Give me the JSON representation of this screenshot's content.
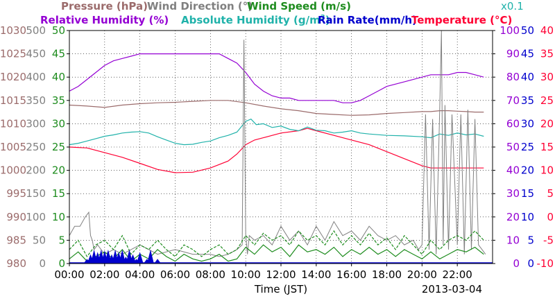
{
  "chart_data": {
    "type": "line",
    "date_label": "2013-03-04",
    "xlabel": "Time (JST)",
    "xlim": [
      0,
      24
    ],
    "x_ticks": [
      "00:00",
      "02:00",
      "04:00",
      "06:00",
      "08:00",
      "10:00",
      "12:00",
      "14:00",
      "16:00",
      "18:00",
      "20:00",
      "22:00"
    ],
    "multiplier_note": "x0.1",
    "colors": {
      "pressure": "#9b6b6b",
      "wind_direction": "#808080",
      "wind_speed": "#1e8c1e",
      "humidity": "#9400d3",
      "abs_humidity": "#20b2aa",
      "rain": "#0000cd",
      "temperature": "#ff0033"
    },
    "axes": {
      "pressure": {
        "ticks": [
          "980",
          "985",
          "990",
          "995",
          "1000",
          "1005",
          "1010",
          "1015",
          "1020",
          "1025",
          "1030"
        ]
      },
      "wind_direction": {
        "ticks": [
          "0",
          "50",
          "100",
          "150",
          "200",
          "250",
          "300",
          "350",
          "400",
          "450",
          "500"
        ]
      },
      "wind_speed": {
        "ticks": [
          "0",
          "5",
          "10",
          "15",
          "20",
          "25",
          "30",
          "35",
          "40",
          "45",
          "50"
        ]
      },
      "humidity": {
        "ticks": [
          "0",
          "10",
          "20",
          "30",
          "40",
          "50",
          "60",
          "70",
          "80",
          "90",
          "100"
        ]
      },
      "rain_rate": {
        "ticks": [
          "0",
          "5",
          "10",
          "15",
          "20",
          "25",
          "30",
          "35",
          "40",
          "45",
          "50"
        ]
      },
      "temperature": {
        "ticks": [
          "-10",
          "-5",
          "0",
          "5",
          "10",
          "15",
          "20",
          "25",
          "30",
          "35",
          "40"
        ]
      }
    },
    "legend": {
      "pressure": "Pressure (hPa)",
      "wind_direction": "Wind Direction (°)",
      "wind_speed": "Wind Speed (m/s)",
      "humidity": "Relative Humidity (%)",
      "abs_humidity": "Absolute Humidity (g/m",
      "abs_humidity_sup": "3",
      "abs_humidity_end": ")",
      "rain_rate": "Rain Rate(mm/h)",
      "temperature": "Temperature (°C)"
    },
    "series": [
      {
        "key": "humidity",
        "color": "#9400d3",
        "x": [
          0,
          0.5,
          1,
          1.5,
          2,
          2.5,
          3,
          3.5,
          4,
          5,
          6,
          7,
          8,
          8.5,
          9,
          9.5,
          10,
          10.5,
          11,
          11.5,
          12,
          12.5,
          13,
          13.5,
          14,
          15,
          15.5,
          16,
          16.5,
          17,
          17.5,
          18,
          19,
          20,
          20.5,
          21,
          21.5,
          22,
          22.5,
          23,
          23.5
        ],
        "y": [
          74,
          76,
          79,
          82,
          85,
          87,
          88,
          89,
          90,
          90,
          90,
          90,
          90,
          90,
          88,
          86,
          82,
          77,
          74,
          72,
          71,
          71,
          70,
          70,
          70,
          70,
          69,
          69,
          70,
          72,
          74,
          76,
          78,
          80,
          81,
          81,
          81,
          82,
          82,
          81,
          80
        ]
      },
      {
        "key": "temperature",
        "color": "#ff0033",
        "x": [
          0,
          1,
          2,
          3,
          4,
          5,
          6,
          7,
          8,
          9,
          9.5,
          10,
          10.5,
          11,
          12,
          13,
          13.5,
          14,
          15,
          16,
          17,
          18,
          19,
          20,
          20.5,
          21,
          22,
          23,
          23.5
        ],
        "y": [
          15,
          14.8,
          13.8,
          12.8,
          11.5,
          10.2,
          9.5,
          9.6,
          10.5,
          12,
          13.5,
          15.5,
          16.5,
          17,
          18,
          18.5,
          19,
          18.5,
          17.5,
          16.5,
          15.5,
          14,
          12.5,
          11,
          10.5,
          10.5,
          10.5,
          10.5,
          10.5
        ]
      },
      {
        "key": "abs_humidity",
        "color": "#20b2aa",
        "x": [
          0,
          0.5,
          1,
          1.5,
          2,
          2.5,
          3,
          3.5,
          4,
          4.5,
          5,
          5.5,
          6,
          6.5,
          7,
          7.5,
          8,
          8.5,
          9,
          9.5,
          10,
          10.3,
          10.6,
          11,
          11.5,
          12,
          12.5,
          13,
          13.5,
          14,
          14.5,
          15,
          15.5,
          16,
          16.5,
          17,
          18,
          19,
          20,
          20.5,
          21,
          21.5,
          22,
          22.5,
          23,
          23.5
        ],
        "y": [
          25.5,
          25.8,
          26.3,
          26.8,
          27.3,
          27.6,
          28,
          28.2,
          28.3,
          28,
          27.2,
          26.5,
          25.8,
          25.5,
          25.6,
          26,
          26.3,
          27,
          27.5,
          28.2,
          30.5,
          31,
          29.8,
          30,
          29.2,
          29.5,
          28.8,
          28.5,
          29.3,
          28.6,
          28.5,
          28,
          28.2,
          28.5,
          28,
          27.8,
          27.5,
          27.4,
          27.2,
          27,
          27.8,
          27.5,
          28,
          27.6,
          27.8,
          27.3
        ]
      },
      {
        "key": "pressure",
        "color": "#9b6b6b",
        "x": [
          0,
          1,
          2,
          3,
          4,
          5,
          6,
          7,
          8,
          9,
          10,
          11,
          12,
          13,
          14,
          15,
          16,
          17,
          18,
          19,
          20,
          20.5,
          21,
          21.5,
          22,
          22.5,
          23,
          23.5
        ],
        "y": [
          1014,
          1013.8,
          1013.5,
          1014,
          1014.3,
          1014.5,
          1014.6,
          1014.8,
          1015,
          1015,
          1014.5,
          1013.8,
          1013.2,
          1012.8,
          1012.2,
          1012,
          1011.8,
          1011.9,
          1012.2,
          1012.4,
          1012.6,
          1012.6,
          1012.8,
          1012.8,
          1012.7,
          1012.6,
          1012.5,
          1012.5
        ]
      },
      {
        "key": "wind_direction",
        "color": "#808080",
        "x": [
          0,
          0.3,
          0.6,
          0.9,
          1.1,
          1.2,
          1.3,
          1.4,
          1.6,
          2,
          2.5,
          3,
          4,
          5,
          6,
          7,
          8,
          8.5,
          9,
          9.5,
          9.8,
          9.9,
          10,
          10.1,
          10.2,
          10.5,
          11,
          11.5,
          12,
          12.5,
          13,
          13.5,
          14,
          14.5,
          15,
          15.5,
          16,
          16.5,
          17,
          17.5,
          18,
          18.5,
          19,
          19.5,
          19.8,
          20,
          20.2,
          20.4,
          20.6,
          20.8,
          21,
          21.1,
          21.2,
          21.3,
          21.5,
          21.7,
          22,
          22.2,
          22.4,
          22.6,
          22.8,
          23,
          23.2,
          23.4,
          23.6
        ],
        "y": [
          60,
          80,
          80,
          100,
          110,
          60,
          50,
          30,
          40,
          20,
          30,
          20,
          40,
          20,
          30,
          20,
          20,
          15,
          20,
          30,
          40,
          480,
          60,
          20,
          60,
          50,
          60,
          40,
          80,
          50,
          70,
          40,
          80,
          50,
          90,
          60,
          70,
          50,
          80,
          60,
          50,
          60,
          40,
          50,
          30,
          40,
          320,
          30,
          310,
          20,
          330,
          500,
          40,
          340,
          30,
          320,
          40,
          320,
          20,
          330,
          30,
          310,
          40,
          30,
          20
        ]
      },
      {
        "key": "wind_speed",
        "color": "#1e8c1e",
        "x": [
          0,
          0.5,
          1,
          1.5,
          2,
          2.5,
          3,
          3.5,
          4,
          4.5,
          5,
          5.5,
          6,
          6.5,
          7,
          7.5,
          8,
          8.5,
          9,
          9.5,
          10,
          10.5,
          11,
          11.5,
          12,
          12.5,
          13,
          13.5,
          14,
          14.5,
          15,
          15.5,
          16,
          16.5,
          17,
          17.5,
          18,
          18.5,
          19,
          19.5,
          20,
          20.5,
          21,
          21.5,
          22,
          22.5,
          23,
          23.5
        ],
        "y": [
          1,
          2.5,
          0.5,
          1.5,
          2.5,
          1,
          3,
          0.5,
          2,
          1,
          3,
          1.5,
          0.5,
          2,
          1,
          0.5,
          1,
          2,
          0.5,
          1,
          3.5,
          2,
          4,
          2.5,
          3.5,
          1.5,
          4,
          2.5,
          3,
          2,
          3.5,
          1.5,
          3,
          2,
          3.5,
          2,
          3,
          1.5,
          3,
          2,
          1,
          2.5,
          1,
          2,
          3,
          2.5,
          3.5,
          2
        ]
      },
      {
        "key": "wind_speed_gust",
        "color": "#1e8c1e",
        "x": [
          0,
          0.5,
          1,
          1.5,
          2,
          2.5,
          3,
          3.5,
          4,
          4.5,
          5,
          5.5,
          6,
          6.5,
          7,
          7.5,
          8,
          8.5,
          9,
          9.5,
          10,
          10.5,
          11,
          11.5,
          12,
          12.5,
          13,
          13.5,
          14,
          14.5,
          15,
          15.5,
          16,
          16.5,
          17,
          17.5,
          18,
          18.5,
          19,
          19.5,
          20,
          20.5,
          21,
          21.5,
          22,
          22.5,
          23,
          23.5
        ],
        "y": [
          3,
          5,
          1.5,
          4,
          5,
          3,
          6,
          2,
          4,
          3,
          5,
          3,
          1.5,
          4,
          3,
          1.5,
          3,
          4,
          2,
          3,
          6,
          4,
          6.5,
          5,
          6,
          4,
          7,
          5,
          6,
          4,
          7,
          4,
          6,
          4,
          6.5,
          4,
          5.5,
          3,
          6,
          4,
          2,
          5,
          3,
          5,
          6,
          5,
          7,
          5
        ]
      },
      {
        "key": "rain_rate",
        "color": "#0000cd",
        "x": [
          1.0,
          1.2,
          1.4,
          1.6,
          1.8,
          2.0,
          2.2,
          2.4,
          2.6,
          2.8,
          3.0,
          3.2,
          3.4,
          3.6,
          3.8,
          4.0,
          4.4,
          4.6,
          5.0
        ],
        "y": [
          1,
          2,
          3,
          2.5,
          3,
          2.8,
          3,
          2,
          3,
          2.5,
          3,
          1.5,
          3,
          2,
          1,
          2.5,
          1,
          3,
          1
        ]
      }
    ]
  }
}
